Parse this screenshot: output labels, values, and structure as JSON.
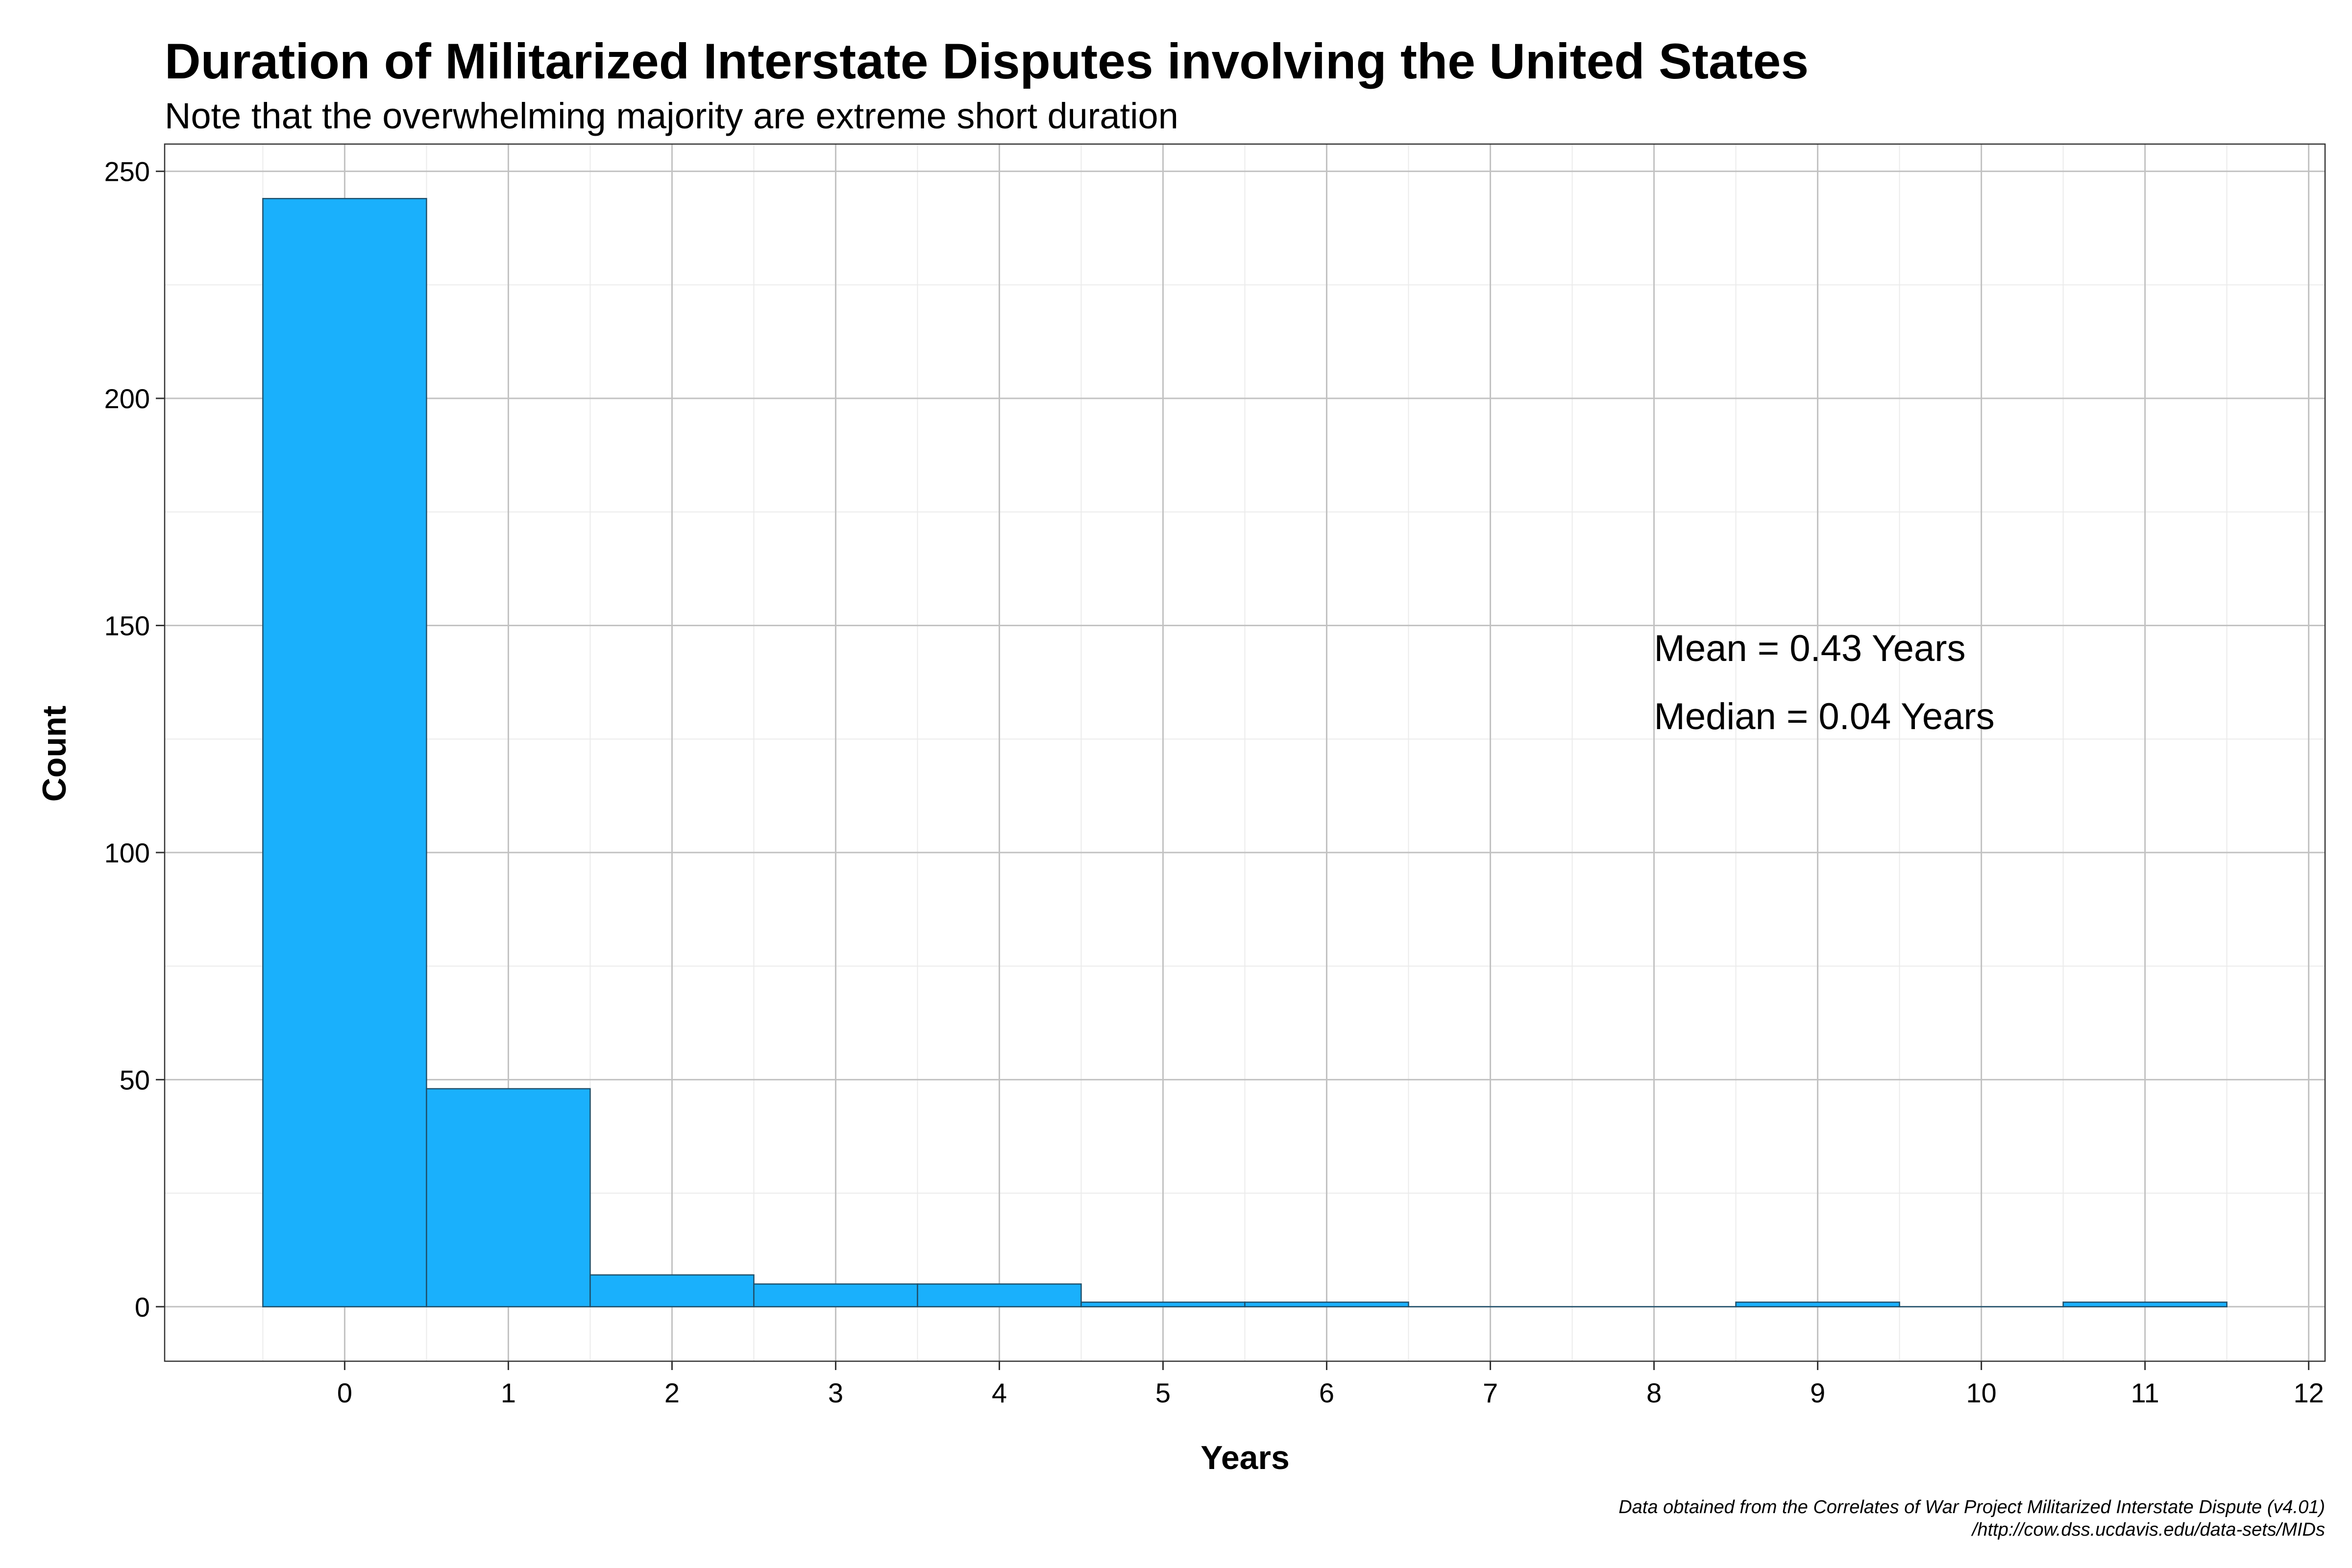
{
  "chart_data": {
    "type": "bar",
    "title": "Duration of Militarized Interstate Disputes involving the United States",
    "subtitle": "Note that the overwhelming majority are extreme short duration",
    "xlabel": "Years",
    "ylabel": "Count",
    "x": [
      0,
      1,
      2,
      3,
      4,
      5,
      6,
      7,
      8,
      9,
      10,
      11
    ],
    "values": [
      244,
      48,
      7,
      5,
      5,
      1,
      1,
      0,
      0,
      1,
      0,
      1
    ],
    "bin_width": 1,
    "xlim": [
      -1.1,
      12.1
    ],
    "ylim": [
      -12,
      256
    ],
    "x_ticks": [
      0,
      1,
      2,
      3,
      4,
      5,
      6,
      7,
      8,
      9,
      10,
      11,
      12
    ],
    "y_ticks": [
      0,
      50,
      100,
      150,
      200,
      250
    ],
    "grid": true,
    "bar_color": "#1AB0FC",
    "bar_edge_color": "#1f4f6a",
    "annotations": [
      {
        "text": "Mean = 0.43 Years",
        "x": 8,
        "y": 145
      },
      {
        "text": "Median = 0.04 Years",
        "x": 8,
        "y": 130
      }
    ],
    "caption": [
      "Data obtained from the Correlates of War Project Militarized Interstate Dispute (v4.01)",
      "/http://cow.dss.ucdavis.edu/data-sets/MIDs"
    ]
  }
}
